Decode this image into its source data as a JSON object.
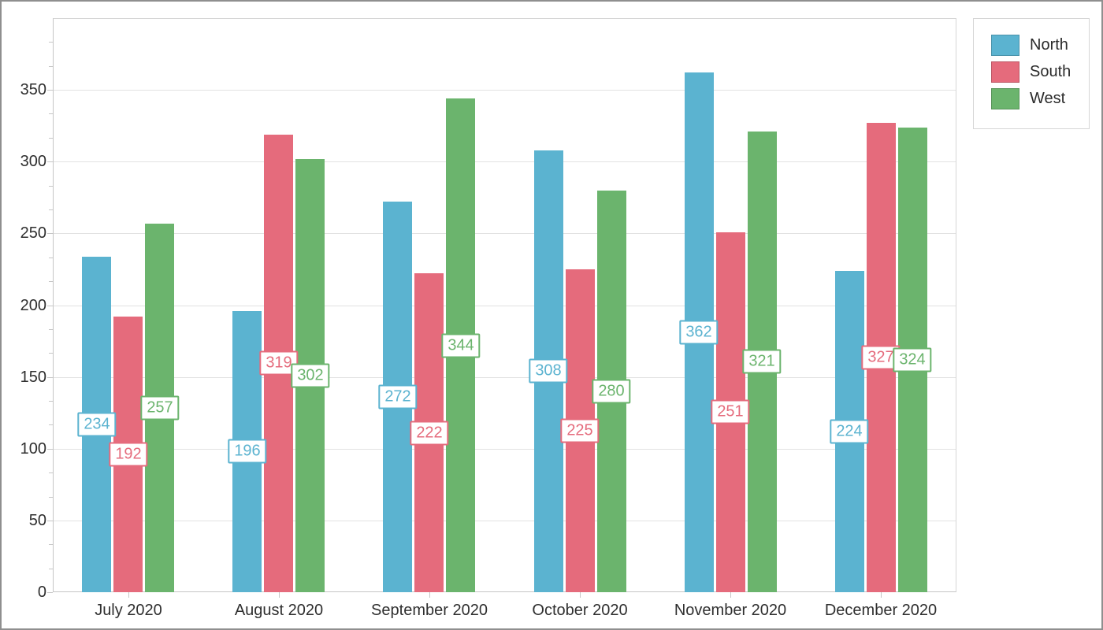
{
  "chart_data": {
    "type": "bar",
    "title": "",
    "categories": [
      "July 2020",
      "August 2020",
      "September 2020",
      "October 2020",
      "November 2020",
      "December 2020"
    ],
    "series": [
      {
        "name": "North",
        "color": "#5bb3d0",
        "values": [
          234,
          196,
          272,
          308,
          362,
          224
        ]
      },
      {
        "name": "South",
        "color": "#e56b7c",
        "values": [
          192,
          319,
          222,
          225,
          251,
          327
        ]
      },
      {
        "name": "West",
        "color": "#6bb46d",
        "values": [
          257,
          302,
          344,
          280,
          321,
          324
        ]
      }
    ],
    "value_axis": {
      "min": 0,
      "max": 400,
      "tick_interval": 50,
      "tick_labels": [
        "0",
        "50",
        "100",
        "150",
        "200",
        "250",
        "300",
        "350"
      ],
      "minor_ticks_per_interval": 2
    },
    "grid": "horizontal-only",
    "legend_position": "top-right",
    "data_labels": "value shown in white box with series-colored border, centered at mid-height of each bar"
  },
  "legend": {
    "items": [
      "North",
      "South",
      "West"
    ]
  }
}
